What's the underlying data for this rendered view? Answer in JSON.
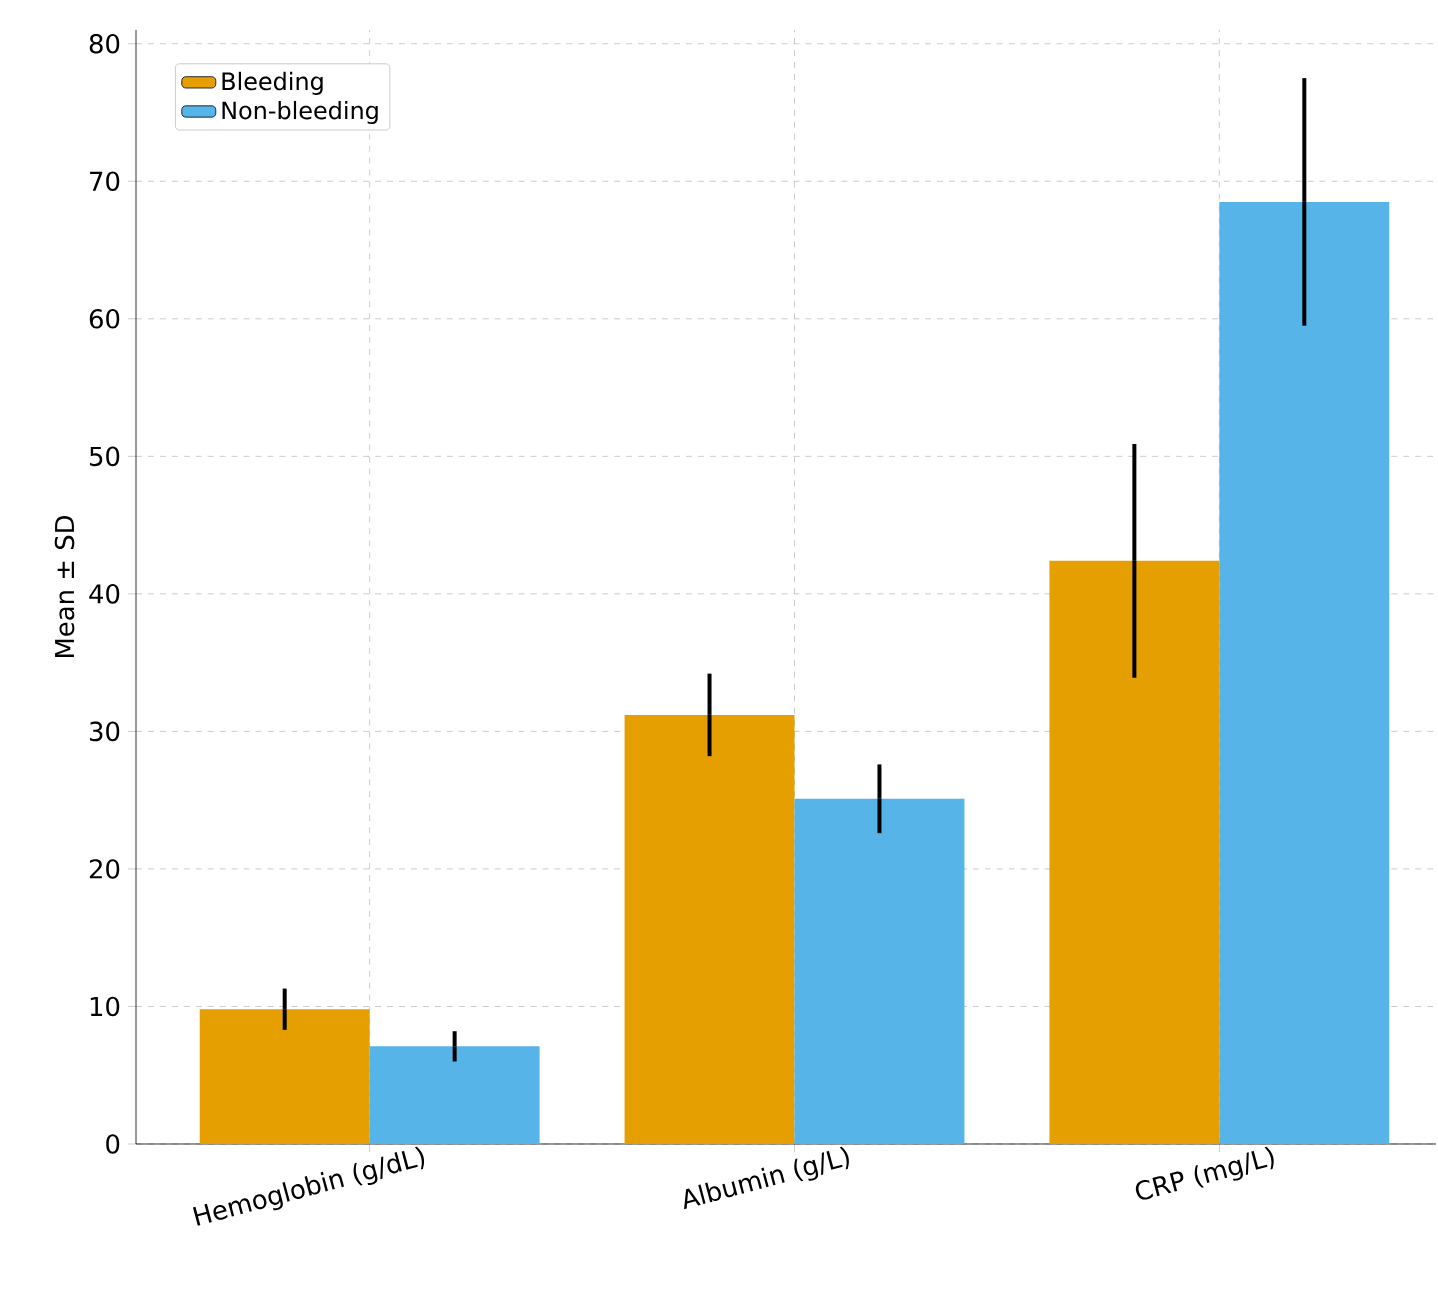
{
  "chart_data": {
    "type": "bar",
    "ylabel": "Mean ± SD",
    "categories": [
      "Hemoglobin (g/dL)",
      "Albumin (g/L)",
      "CRP (mg/L)"
    ],
    "series": [
      {
        "name": "Bleeding",
        "color": "#e69f00",
        "values": [
          9.8,
          31.2,
          42.4
        ],
        "errors": [
          1.5,
          3.0,
          8.5
        ]
      },
      {
        "name": "Non-bleeding",
        "color": "#56b4e9",
        "values": [
          7.1,
          25.1,
          68.5
        ],
        "errors": [
          1.1,
          2.5,
          9.0
        ]
      }
    ],
    "ylim": [
      0,
      81
    ],
    "yticks": [
      0,
      10,
      20,
      30,
      40,
      50,
      60,
      70,
      80
    ],
    "grid": true,
    "legend": "top left"
  }
}
